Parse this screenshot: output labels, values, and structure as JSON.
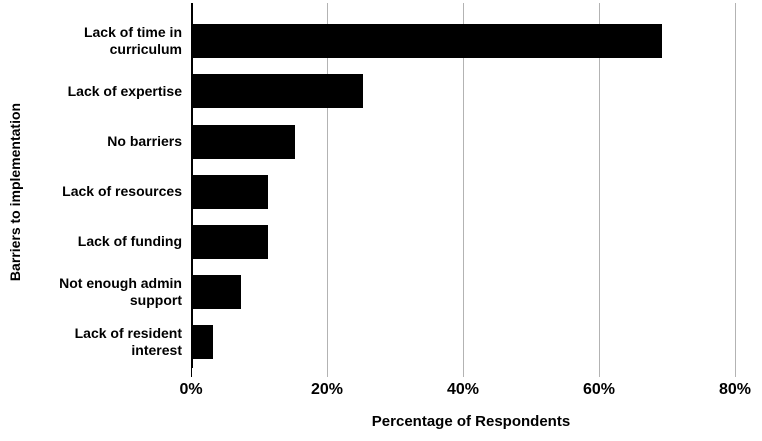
{
  "chart_data": {
    "type": "bar",
    "orientation": "horizontal",
    "title": "",
    "categories": [
      "Lack of time in\ncurriculum",
      "Lack of expertise",
      "No barriers",
      "Lack of resources",
      "Lack of funding",
      "Not enough admin\nsupport",
      "Lack of resident\ninterest"
    ],
    "values": [
      69,
      25,
      15,
      11,
      11,
      7,
      3
    ],
    "xlabel": "Percentage of Respondents",
    "ylabel": "Barriers to implementation",
    "xlim": [
      0,
      80
    ],
    "x_ticks": [
      0,
      20,
      40,
      60,
      80
    ],
    "x_tick_labels": [
      "0%",
      "20%",
      "40%",
      "60%",
      "80%"
    ],
    "grid": true,
    "legend": false,
    "colors": {
      "bar": "#000000",
      "gridline": "#b3b3b3",
      "axis": "#000000",
      "text": "#000000",
      "background": "#ffffff"
    }
  }
}
